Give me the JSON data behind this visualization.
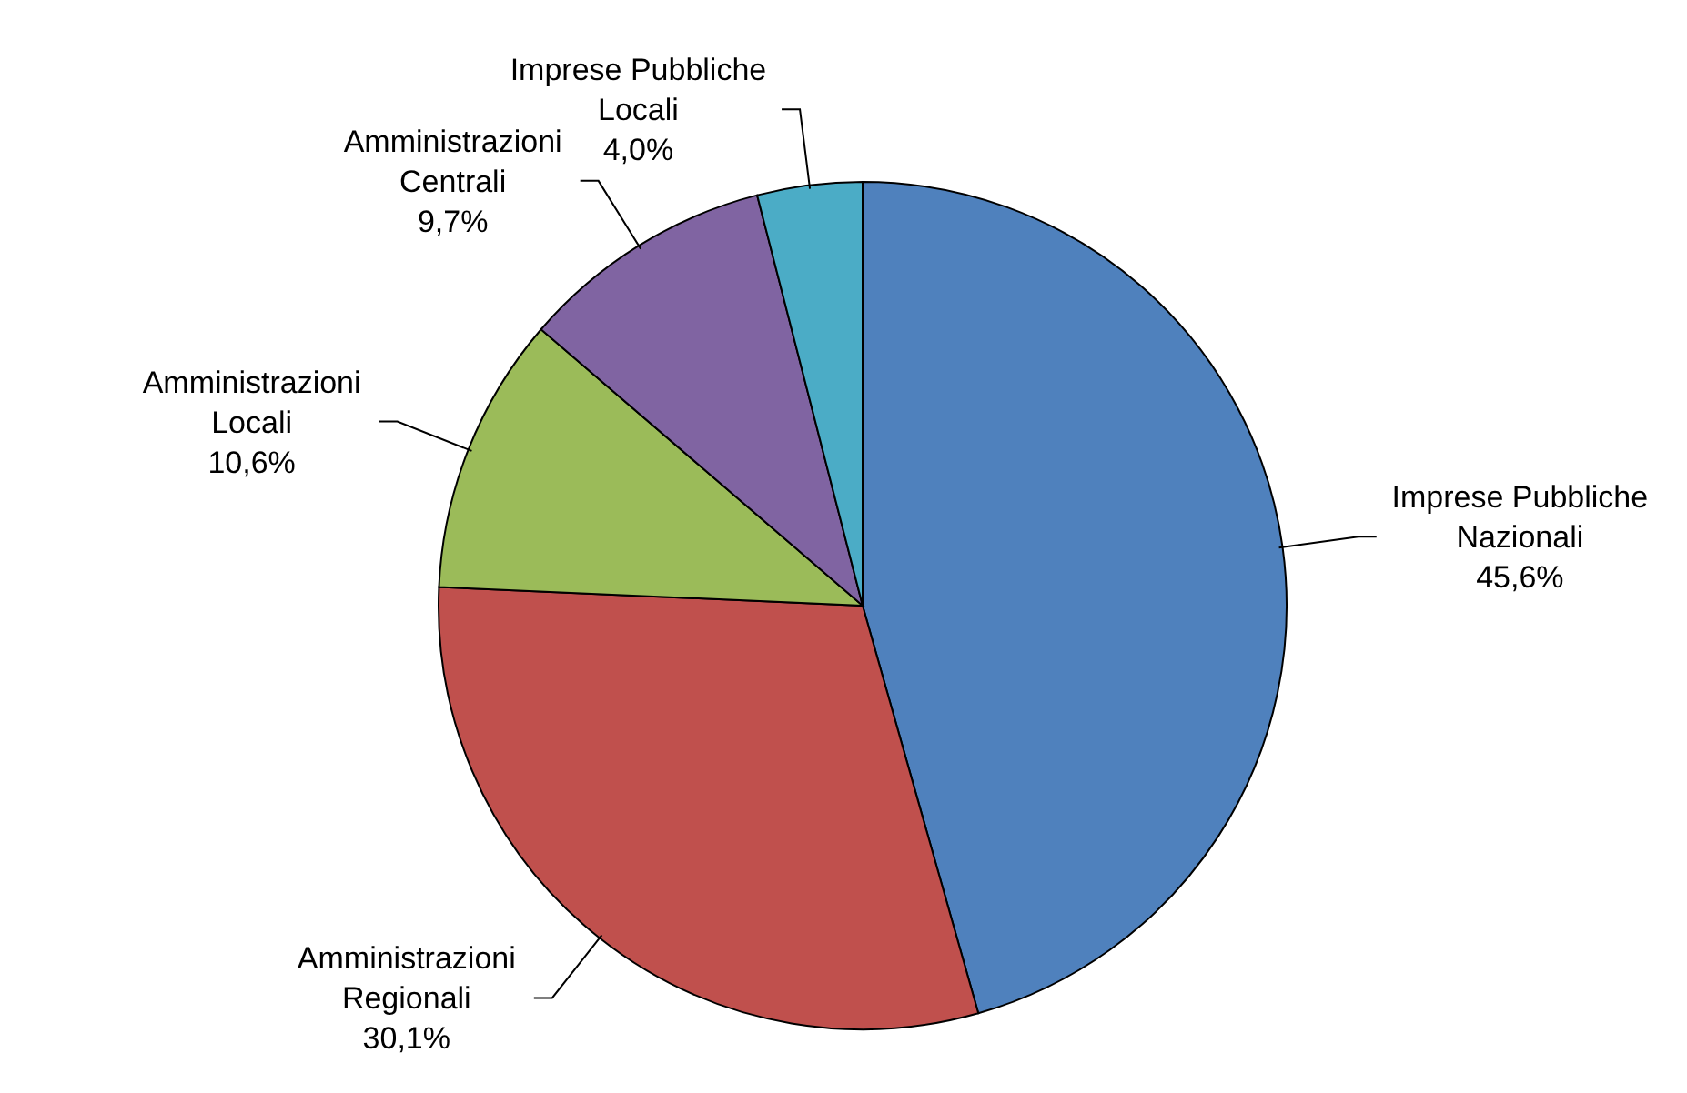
{
  "chart_data": {
    "type": "pie",
    "categories": [
      "Imprese Pubbliche Nazionali",
      "Amministrazioni Regionali",
      "Amministrazioni Locali",
      "Amministrazioni Centrali",
      "Imprese Pubbliche Locali"
    ],
    "values": [
      45.6,
      30.1,
      10.6,
      9.7,
      4.0
    ],
    "colors": [
      "#4f81bd",
      "#c0504d",
      "#9bbb59",
      "#8064a2",
      "#4bacc6"
    ],
    "value_labels": [
      "45,6%",
      "30,1%",
      "10,6%",
      "9,7%",
      "4,0%"
    ],
    "legend": false
  }
}
